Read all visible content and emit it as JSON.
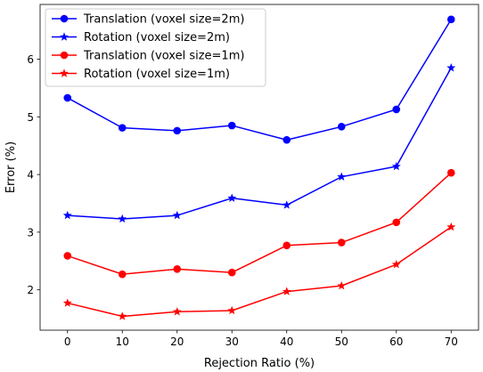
{
  "chart_data": {
    "type": "line",
    "title": "",
    "xlabel": "Rejection Ratio (%)",
    "ylabel": "Error (%)",
    "x": [
      0,
      10,
      20,
      30,
      40,
      50,
      60,
      70
    ],
    "xlim": [
      -5,
      75
    ],
    "ylim": [
      1.3,
      6.95
    ],
    "xticks": [
      0,
      10,
      20,
      30,
      40,
      50,
      60,
      70
    ],
    "yticks": [
      2,
      3,
      4,
      5,
      6
    ],
    "grid": false,
    "legend_position": "top-left",
    "series": [
      {
        "name": "Translation (voxel size=2m)",
        "color": "#0000ff",
        "marker": "circle",
        "values": [
          5.33,
          4.81,
          4.76,
          4.85,
          4.6,
          4.83,
          5.13,
          6.69
        ]
      },
      {
        "name": "Rotation (voxel size=2m)",
        "color": "#0000ff",
        "marker": "star",
        "values": [
          3.29,
          3.23,
          3.29,
          3.59,
          3.47,
          3.96,
          4.14,
          5.85
        ]
      },
      {
        "name": "Translation (voxel size=1m)",
        "color": "#ff0000",
        "marker": "circle",
        "values": [
          2.59,
          2.27,
          2.36,
          2.3,
          2.77,
          2.82,
          3.17,
          4.03
        ]
      },
      {
        "name": "Rotation (voxel size=1m)",
        "color": "#ff0000",
        "marker": "star",
        "values": [
          1.77,
          1.54,
          1.62,
          1.64,
          1.97,
          2.07,
          2.44,
          3.09
        ]
      }
    ]
  }
}
